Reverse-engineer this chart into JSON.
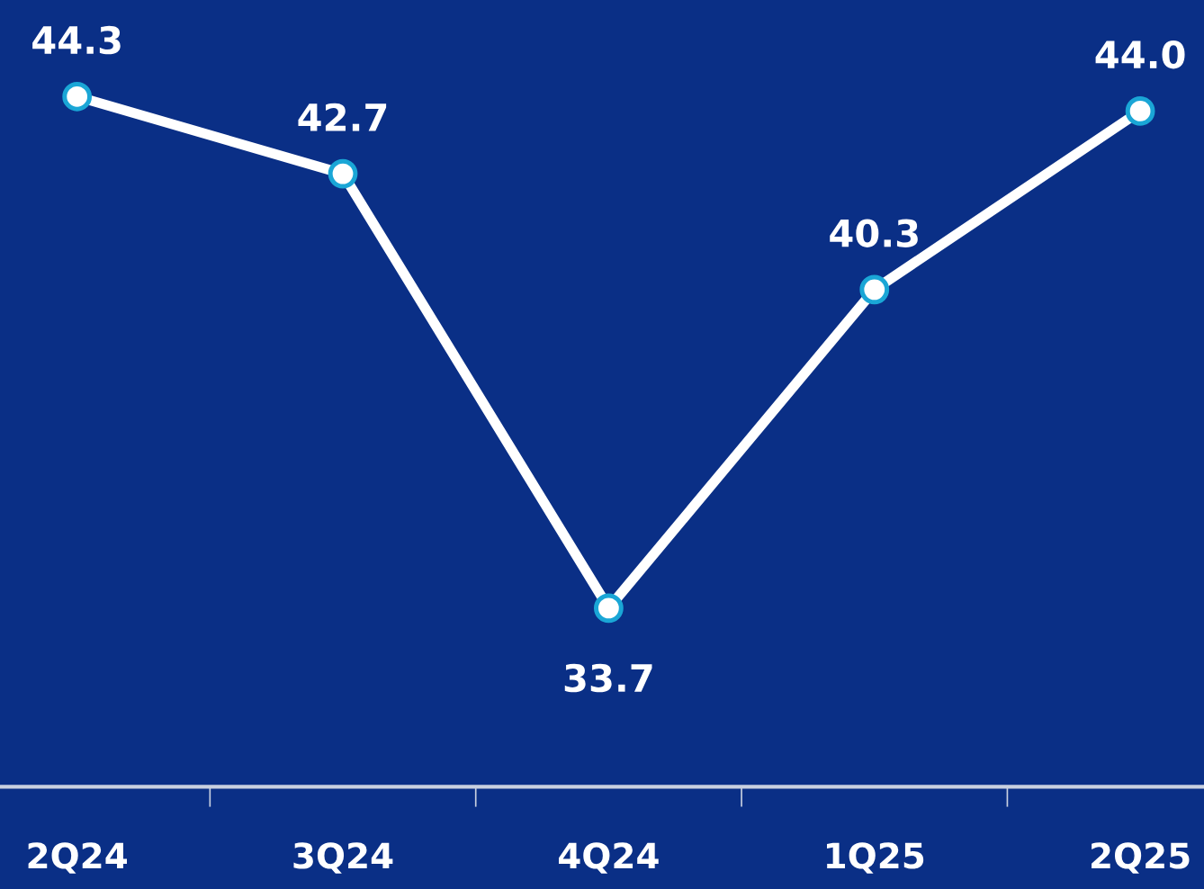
{
  "chart_data": {
    "type": "line",
    "categories": [
      "2Q24",
      "3Q24",
      "4Q24",
      "1Q25",
      "2Q25"
    ],
    "series": [
      {
        "color": "#ffffff",
        "values": [
          44.3,
          42.7,
          33.7,
          40.3,
          44.0
        ],
        "value_labels": [
          "44.3",
          "42.7",
          "33.7",
          "40.3",
          "44.0"
        ]
      }
    ],
    "ylim": [
      30,
      46.3
    ],
    "tick_labels": "x",
    "marker": "circle",
    "line_style": "solid",
    "grid": false,
    "legend": false
  }
}
